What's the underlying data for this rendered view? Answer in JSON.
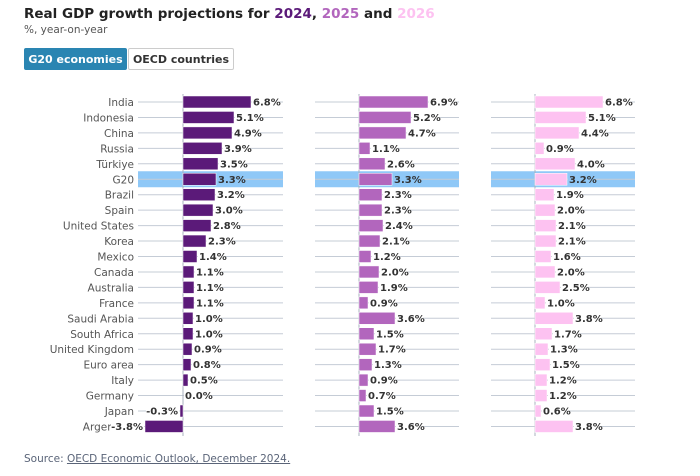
{
  "header": {
    "title_prefix": "Real GDP growth projections for ",
    "year1": "2024",
    "sep1": ", ",
    "year2": "2025",
    "sep2": " and ",
    "year3": "2026",
    "subtitle": "%, year-on-year"
  },
  "toggle": {
    "g20_label": "G20 economies",
    "oecd_label": "OECD countries",
    "active": "G20 economies"
  },
  "source": {
    "prefix": "Source: ",
    "link_text": "OECD Economic Outlook, December 2024."
  },
  "colors": {
    "2024": "#5b1a79",
    "2025": "#b266bd",
    "2026": "#fdc2f1",
    "highlight": "#8fc8f7",
    "gridline": "#c5ccd6",
    "active_button": "#2a85b2"
  },
  "chart_data": {
    "type": "bar",
    "orientation": "horizontal",
    "title": "Real GDP growth projections for 2024, 2025 and 2026",
    "subtitle": "%, year-on-year",
    "unit": "%",
    "highlighted_category": "G20",
    "categories": [
      "India",
      "Indonesia",
      "China",
      "Russia",
      "Türkiye",
      "G20",
      "Brazil",
      "Spain",
      "United States",
      "Korea",
      "Mexico",
      "Canada",
      "Australia",
      "France",
      "Saudi Arabia",
      "South Africa",
      "United Kingdom",
      "Euro area",
      "Italy",
      "Germany",
      "Japan",
      "Argentina"
    ],
    "series": [
      {
        "name": "2024",
        "values": [
          6.8,
          5.1,
          4.9,
          3.9,
          3.5,
          3.3,
          3.2,
          3.0,
          2.8,
          2.3,
          1.4,
          1.1,
          1.1,
          1.1,
          1.0,
          1.0,
          0.9,
          0.8,
          0.5,
          0.0,
          -0.3,
          -3.8
        ]
      },
      {
        "name": "2025",
        "values": [
          6.9,
          5.2,
          4.7,
          1.1,
          2.6,
          3.3,
          2.3,
          2.3,
          2.4,
          2.1,
          1.2,
          2.0,
          1.9,
          0.9,
          3.6,
          1.5,
          1.7,
          1.3,
          0.9,
          0.7,
          1.5,
          3.6
        ]
      },
      {
        "name": "2026",
        "values": [
          6.8,
          5.1,
          4.4,
          0.9,
          4.0,
          3.2,
          1.9,
          2.0,
          2.1,
          2.1,
          1.6,
          2.0,
          2.5,
          1.0,
          3.8,
          1.7,
          1.3,
          1.5,
          1.2,
          1.2,
          0.6,
          3.8
        ]
      }
    ],
    "xlim": [
      -4.5,
      10
    ],
    "grid": true,
    "legend": "in-title"
  }
}
